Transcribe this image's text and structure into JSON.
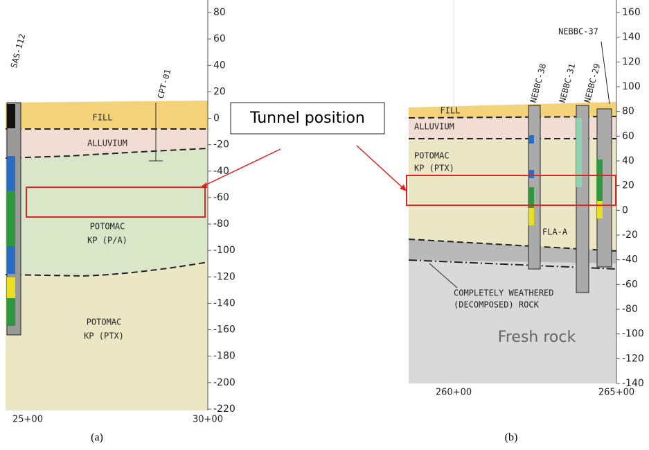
{
  "callout": "Tunnel position",
  "panels": [
    {
      "caption": "(a)",
      "stations": [
        "25+00",
        "30+00"
      ],
      "yticks": [
        80,
        60,
        40,
        20,
        0,
        -20,
        -40,
        -60,
        -80,
        -100,
        -120,
        -140,
        -160,
        -180,
        -200,
        -220
      ],
      "layers": [
        [
          "FILL"
        ],
        [
          "ALLUVIUM"
        ],
        [
          "POTOMAC",
          "KP (P/A)"
        ],
        [
          "POTOMAC",
          "KP (PTX)"
        ]
      ],
      "boreholes": [
        "SAS-112",
        "CPT-01"
      ]
    },
    {
      "caption": "(b)",
      "stations": [
        "260+00",
        "265+00"
      ],
      "yticks": [
        160,
        140,
        120,
        100,
        80,
        60,
        40,
        20,
        0,
        -20,
        -40,
        -60,
        -80,
        -100,
        -120,
        -140
      ],
      "layers": [
        [
          "FILL"
        ],
        [
          "ALLUVIUM"
        ],
        [
          "POTOMAC",
          "KP (PTX)"
        ]
      ],
      "boreholes": [
        "NEBBC-38",
        "NEBBC-31",
        "NEBBC-29",
        "NEBBC-37"
      ],
      "notes": [
        "FLA-A",
        "COMPLETELY WEATHERED",
        "(DECOMPOSED) ROCK",
        "Fresh rock"
      ]
    }
  ]
}
